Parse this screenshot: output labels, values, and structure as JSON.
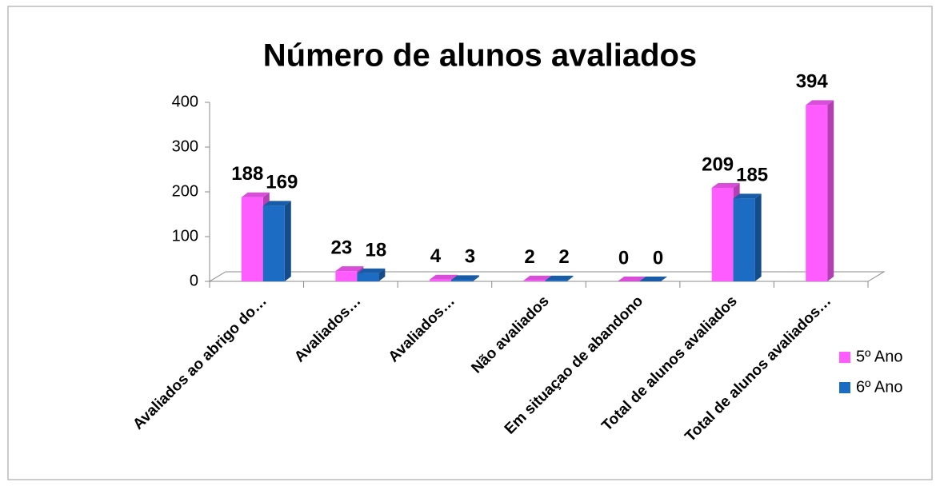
{
  "chart_data": {
    "type": "bar3d",
    "title": "Número de alunos avaliados",
    "categories": [
      "Avaliados ao abrigo do…",
      "Avaliados…",
      "Avaliados…",
      "Não avaliados",
      "Em situaçao de abandono",
      "Total de alunos avaliados",
      "Total de alunos avaliados…"
    ],
    "series": [
      {
        "name": "5º Ano",
        "color": "#ff5cff",
        "values": [
          188,
          23,
          4,
          2,
          0,
          209,
          394
        ]
      },
      {
        "name": "6º Ano",
        "color": "#1c6cc4",
        "values": [
          169,
          18,
          3,
          2,
          0,
          185,
          null
        ]
      }
    ],
    "ylim": [
      0,
      400
    ],
    "yticks": [
      0,
      100,
      200,
      300,
      400
    ],
    "legend": "right"
  }
}
